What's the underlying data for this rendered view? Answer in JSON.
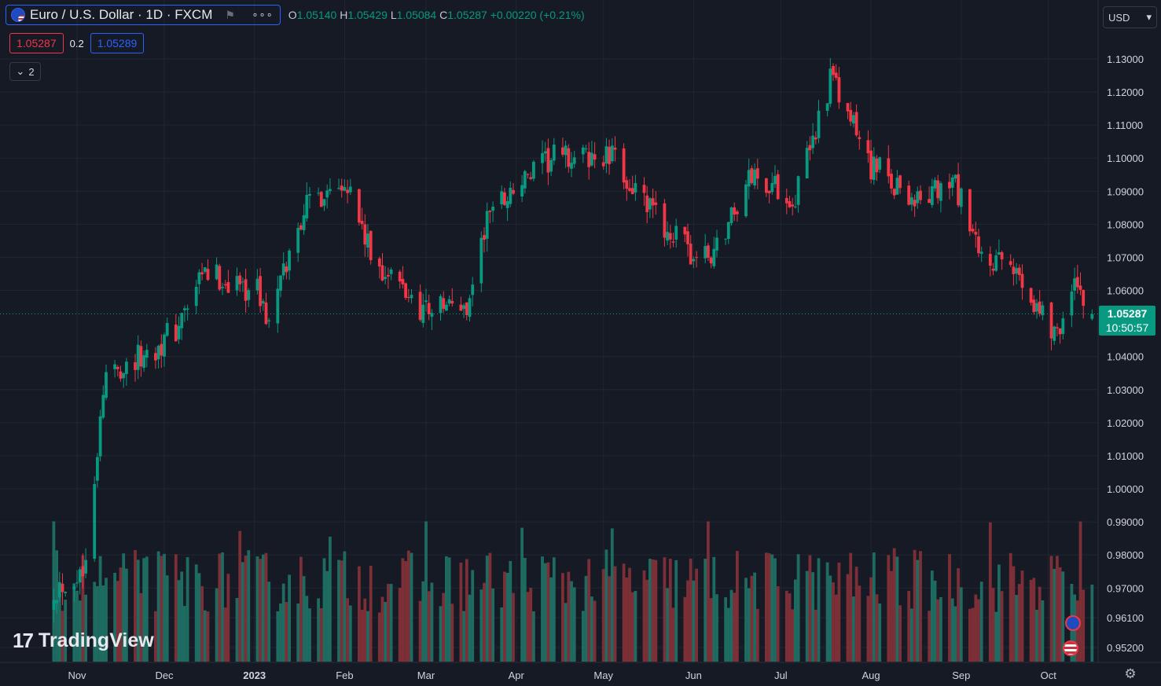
{
  "legend": {
    "symbol_title": "Euro / U.S. Dollar · 1D · FXCM",
    "menu_glyph": "∘∘∘",
    "flag_icon": "flag-icon",
    "ohlc": {
      "o_label": "O",
      "o": "1.05140",
      "h_label": "H",
      "h": "1.05429",
      "l_label": "L",
      "l": "1.05084",
      "c_label": "C",
      "c": "1.05287",
      "change": "+0.00220 (+0.21%)"
    },
    "bid": "1.05287",
    "spread": "0.2",
    "ask": "1.05289",
    "collapsed_count": "2"
  },
  "currency_selector": "USD",
  "last_price": {
    "price": "1.05287",
    "countdown": "10:50:57"
  },
  "watermark": "TradingView",
  "colors": {
    "background": "#161a25",
    "up": "#089981",
    "down": "#f23645",
    "grid": "#222631",
    "text": "#d1d4dc"
  },
  "chart_data": {
    "type": "candlestick",
    "symbol": "EURUSD",
    "interval": "1D",
    "price_axis": {
      "ylim": [
        0.9466,
        1.1418
      ],
      "tick_values": [
        0.952,
        0.961,
        0.97,
        0.98,
        0.99,
        1.0,
        1.01,
        1.02,
        1.03,
        1.04,
        1.06,
        1.07,
        1.08,
        1.09,
        1.1,
        1.11,
        1.12,
        1.13
      ],
      "tick_labels": [
        "0.95200",
        "0.96100",
        "0.97000",
        "0.98000",
        "0.99000",
        "1.00000",
        "1.01000",
        "1.02000",
        "1.03000",
        "1.04000",
        "1.06000",
        "1.07000",
        "1.08000",
        "1.09000",
        "1.10000",
        "1.11000",
        "1.12000",
        "1.13000"
      ]
    },
    "time_axis": {
      "labels": [
        "Nov",
        "Dec",
        "2023",
        "Feb",
        "Mar",
        "Apr",
        "May",
        "Jun",
        "Jul",
        "Aug",
        "Sep",
        "Oct"
      ]
    },
    "close_path": [
      {
        "date": "2022-10-24",
        "close": 0.97
      },
      {
        "date": "2022-11-03",
        "close": 0.975
      },
      {
        "date": "2022-11-11",
        "close": 1.035
      },
      {
        "date": "2022-11-24",
        "close": 1.04
      },
      {
        "date": "2022-12-05",
        "close": 1.048
      },
      {
        "date": "2022-12-15",
        "close": 1.065
      },
      {
        "date": "2023-01-02",
        "close": 1.06
      },
      {
        "date": "2023-01-06",
        "close": 1.05
      },
      {
        "date": "2023-01-18",
        "close": 1.085
      },
      {
        "date": "2023-02-01",
        "close": 1.095
      },
      {
        "date": "2023-02-10",
        "close": 1.07
      },
      {
        "date": "2023-02-27",
        "close": 1.055
      },
      {
        "date": "2023-03-15",
        "close": 1.055
      },
      {
        "date": "2023-03-23",
        "close": 1.085
      },
      {
        "date": "2023-04-14",
        "close": 1.1
      },
      {
        "date": "2023-05-04",
        "close": 1.1
      },
      {
        "date": "2023-05-16",
        "close": 1.085
      },
      {
        "date": "2023-06-01",
        "close": 1.07
      },
      {
        "date": "2023-06-07",
        "close": 1.07
      },
      {
        "date": "2023-06-21",
        "close": 1.095
      },
      {
        "date": "2023-07-06",
        "close": 1.088
      },
      {
        "date": "2023-07-18",
        "close": 1.124
      },
      {
        "date": "2023-08-01",
        "close": 1.098
      },
      {
        "date": "2023-08-17",
        "close": 1.087
      },
      {
        "date": "2023-08-30",
        "close": 1.092
      },
      {
        "date": "2023-09-07",
        "close": 1.07
      },
      {
        "date": "2023-09-21",
        "close": 1.065
      },
      {
        "date": "2023-10-03",
        "close": 1.047
      },
      {
        "date": "2023-10-11",
        "close": 1.062
      },
      {
        "date": "2023-10-16",
        "close": 1.0529
      }
    ],
    "last_bar": {
      "open": 1.0514,
      "high": 1.05429,
      "low": 1.05084,
      "close": 1.05287
    },
    "volume": "bars below price, colored by candle direction"
  }
}
